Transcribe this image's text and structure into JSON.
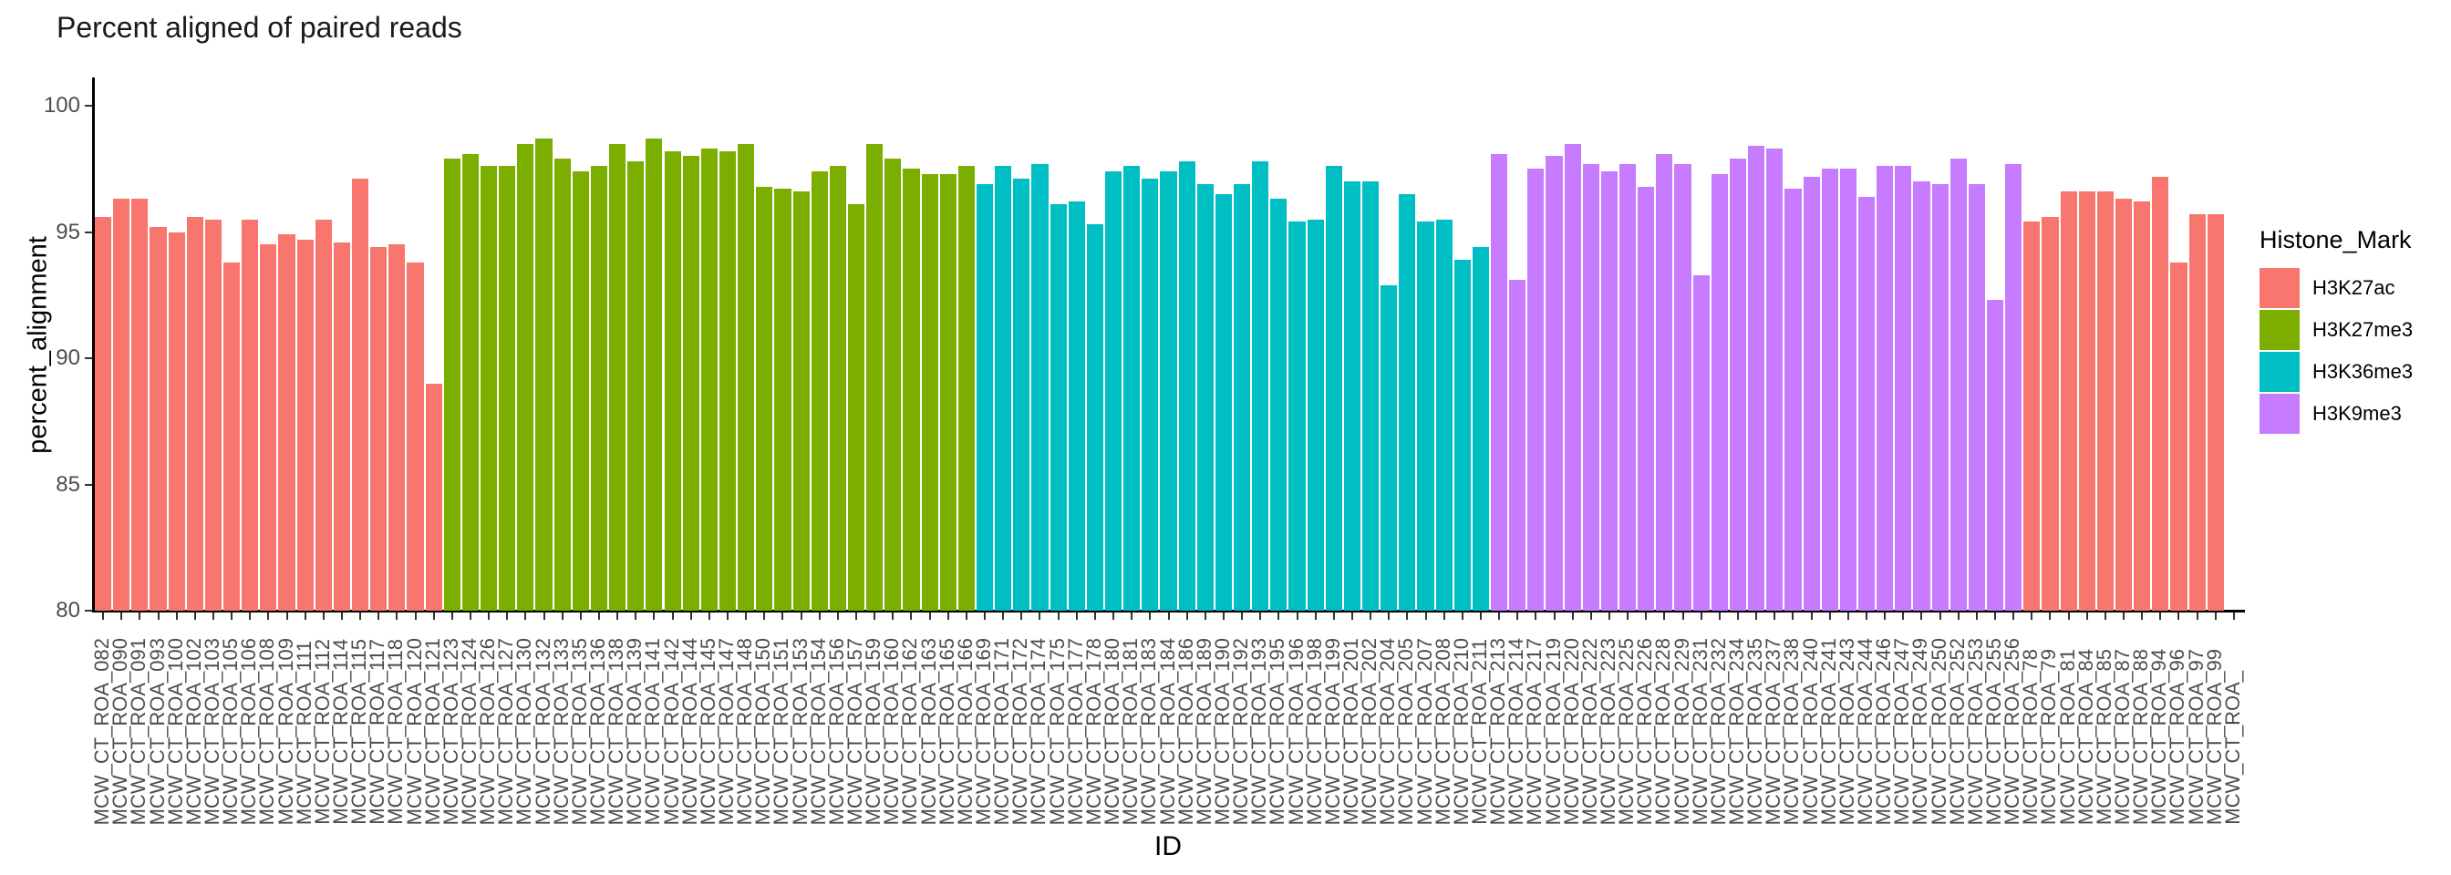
{
  "chart_data": {
    "type": "bar",
    "title": "Percent aligned of paired reads",
    "xlabel": "ID",
    "ylabel": "percent_alignment",
    "ylim": [
      80,
      100
    ],
    "yticks": [
      80,
      85,
      90,
      95,
      100
    ],
    "grid": false,
    "legend": {
      "title": "Histone_Mark",
      "position": "right",
      "entries": [
        {
          "label": "H3K27ac",
          "color": "#F8766D"
        },
        {
          "label": "H3K27me3",
          "color": "#7CAE00"
        },
        {
          "label": "H3K36me3",
          "color": "#00BFC4"
        },
        {
          "label": "H3K9me3",
          "color": "#C77CFF"
        }
      ]
    },
    "colors": {
      "H3K27ac": "#F8766D",
      "H3K27me3": "#7CAE00",
      "H3K36me3": "#00BFC4",
      "H3K9me3": "#C77CFF"
    },
    "points": [
      [
        "MCW_CT_ROA_082",
        95.6,
        "H3K27ac"
      ],
      [
        "MCW_CT_ROA_090",
        96.3,
        "H3K27ac"
      ],
      [
        "MCW_CT_ROA_091",
        96.3,
        "H3K27ac"
      ],
      [
        "MCW_CT_ROA_093",
        95.2,
        "H3K27ac"
      ],
      [
        "MCW_CT_ROA_100",
        95.0,
        "H3K27ac"
      ],
      [
        "MCW_CT_ROA_102",
        95.6,
        "H3K27ac"
      ],
      [
        "MCW_CT_ROA_103",
        95.5,
        "H3K27ac"
      ],
      [
        "MCW_CT_ROA_105",
        93.8,
        "H3K27ac"
      ],
      [
        "MCW_CT_ROA_106",
        95.5,
        "H3K27ac"
      ],
      [
        "MCW_CT_ROA_108",
        94.5,
        "H3K27ac"
      ],
      [
        "MCW_CT_ROA_109",
        94.9,
        "H3K27ac"
      ],
      [
        "MCW_CT_ROA_111",
        94.7,
        "H3K27ac"
      ],
      [
        "MCW_CT_ROA_112",
        95.5,
        "H3K27ac"
      ],
      [
        "MCW_CT_ROA_114",
        94.6,
        "H3K27ac"
      ],
      [
        "MCW_CT_ROA_115",
        97.1,
        "H3K27ac"
      ],
      [
        "MCW_CT_ROA_117",
        94.4,
        "H3K27ac"
      ],
      [
        "MCW_CT_ROA_118",
        94.5,
        "H3K27ac"
      ],
      [
        "MCW_CT_ROA_120",
        93.8,
        "H3K27ac"
      ],
      [
        "MCW_CT_ROA_121",
        89.0,
        "H3K27ac"
      ],
      [
        "MCW_CT_ROA_123",
        97.9,
        "H3K27me3"
      ],
      [
        "MCW_CT_ROA_124",
        98.1,
        "H3K27me3"
      ],
      [
        "MCW_CT_ROA_126",
        97.6,
        "H3K27me3"
      ],
      [
        "MCW_CT_ROA_127",
        97.6,
        "H3K27me3"
      ],
      [
        "MCW_CT_ROA_130",
        98.5,
        "H3K27me3"
      ],
      [
        "MCW_CT_ROA_132",
        98.7,
        "H3K27me3"
      ],
      [
        "MCW_CT_ROA_133",
        97.9,
        "H3K27me3"
      ],
      [
        "MCW_CT_ROA_135",
        97.4,
        "H3K27me3"
      ],
      [
        "MCW_CT_ROA_136",
        97.6,
        "H3K27me3"
      ],
      [
        "MCW_CT_ROA_138",
        98.5,
        "H3K27me3"
      ],
      [
        "MCW_CT_ROA_139",
        97.8,
        "H3K27me3"
      ],
      [
        "MCW_CT_ROA_141",
        98.7,
        "H3K27me3"
      ],
      [
        "MCW_CT_ROA_142",
        98.2,
        "H3K27me3"
      ],
      [
        "MCW_CT_ROA_144",
        98.0,
        "H3K27me3"
      ],
      [
        "MCW_CT_ROA_145",
        98.3,
        "H3K27me3"
      ],
      [
        "MCW_CT_ROA_147",
        98.2,
        "H3K27me3"
      ],
      [
        "MCW_CT_ROA_148",
        98.5,
        "H3K27me3"
      ],
      [
        "MCW_CT_ROA_150",
        96.8,
        "H3K27me3"
      ],
      [
        "MCW_CT_ROA_151",
        96.7,
        "H3K27me3"
      ],
      [
        "MCW_CT_ROA_153",
        96.6,
        "H3K27me3"
      ],
      [
        "MCW_CT_ROA_154",
        97.4,
        "H3K27me3"
      ],
      [
        "MCW_CT_ROA_156",
        97.6,
        "H3K27me3"
      ],
      [
        "MCW_CT_ROA_157",
        96.1,
        "H3K27me3"
      ],
      [
        "MCW_CT_ROA_159",
        98.5,
        "H3K27me3"
      ],
      [
        "MCW_CT_ROA_160",
        97.9,
        "H3K27me3"
      ],
      [
        "MCW_CT_ROA_162",
        97.5,
        "H3K27me3"
      ],
      [
        "MCW_CT_ROA_163",
        97.3,
        "H3K27me3"
      ],
      [
        "MCW_CT_ROA_165",
        97.3,
        "H3K27me3"
      ],
      [
        "MCW_CT_ROA_166",
        97.6,
        "H3K27me3"
      ],
      [
        "MCW_CT_ROA_169",
        96.9,
        "H3K36me3"
      ],
      [
        "MCW_CT_ROA_171",
        97.6,
        "H3K36me3"
      ],
      [
        "MCW_CT_ROA_172",
        97.1,
        "H3K36me3"
      ],
      [
        "MCW_CT_ROA_174",
        97.7,
        "H3K36me3"
      ],
      [
        "MCW_CT_ROA_175",
        96.1,
        "H3K36me3"
      ],
      [
        "MCW_CT_ROA_177",
        96.2,
        "H3K36me3"
      ],
      [
        "MCW_CT_ROA_178",
        95.3,
        "H3K36me3"
      ],
      [
        "MCW_CT_ROA_180",
        97.4,
        "H3K36me3"
      ],
      [
        "MCW_CT_ROA_181",
        97.6,
        "H3K36me3"
      ],
      [
        "MCW_CT_ROA_183",
        97.1,
        "H3K36me3"
      ],
      [
        "MCW_CT_ROA_184",
        97.4,
        "H3K36me3"
      ],
      [
        "MCW_CT_ROA_186",
        97.8,
        "H3K36me3"
      ],
      [
        "MCW_CT_ROA_189",
        96.9,
        "H3K36me3"
      ],
      [
        "MCW_CT_ROA_190",
        96.5,
        "H3K36me3"
      ],
      [
        "MCW_CT_ROA_192",
        96.9,
        "H3K36me3"
      ],
      [
        "MCW_CT_ROA_193",
        97.8,
        "H3K36me3"
      ],
      [
        "MCW_CT_ROA_195",
        96.3,
        "H3K36me3"
      ],
      [
        "MCW_CT_ROA_196",
        95.4,
        "H3K36me3"
      ],
      [
        "MCW_CT_ROA_198",
        95.5,
        "H3K36me3"
      ],
      [
        "MCW_CT_ROA_199",
        97.6,
        "H3K36me3"
      ],
      [
        "MCW_CT_ROA_201",
        97.0,
        "H3K36me3"
      ],
      [
        "MCW_CT_ROA_202",
        97.0,
        "H3K36me3"
      ],
      [
        "MCW_CT_ROA_204",
        92.9,
        "H3K36me3"
      ],
      [
        "MCW_CT_ROA_205",
        96.5,
        "H3K36me3"
      ],
      [
        "MCW_CT_ROA_207",
        95.4,
        "H3K36me3"
      ],
      [
        "MCW_CT_ROA_208",
        95.5,
        "H3K36me3"
      ],
      [
        "MCW_CT_ROA_210",
        93.9,
        "H3K36me3"
      ],
      [
        "MCW_CT_ROA_211",
        94.4,
        "H3K36me3"
      ],
      [
        "MCW_CT_ROA_213",
        98.1,
        "H3K9me3"
      ],
      [
        "MCW_CT_ROA_214",
        93.1,
        "H3K9me3"
      ],
      [
        "MCW_CT_ROA_217",
        97.5,
        "H3K9me3"
      ],
      [
        "MCW_CT_ROA_219",
        98.0,
        "H3K9me3"
      ],
      [
        "MCW_CT_ROA_220",
        98.5,
        "H3K9me3"
      ],
      [
        "MCW_CT_ROA_222",
        97.7,
        "H3K9me3"
      ],
      [
        "MCW_CT_ROA_223",
        97.4,
        "H3K9me3"
      ],
      [
        "MCW_CT_ROA_225",
        97.7,
        "H3K9me3"
      ],
      [
        "MCW_CT_ROA_226",
        96.8,
        "H3K9me3"
      ],
      [
        "MCW_CT_ROA_228",
        98.1,
        "H3K9me3"
      ],
      [
        "MCW_CT_ROA_229",
        97.7,
        "H3K9me3"
      ],
      [
        "MCW_CT_ROA_231",
        93.3,
        "H3K9me3"
      ],
      [
        "MCW_CT_ROA_232",
        97.3,
        "H3K9me3"
      ],
      [
        "MCW_CT_ROA_234",
        97.9,
        "H3K9me3"
      ],
      [
        "MCW_CT_ROA_235",
        98.4,
        "H3K9me3"
      ],
      [
        "MCW_CT_ROA_237",
        98.3,
        "H3K9me3"
      ],
      [
        "MCW_CT_ROA_238",
        96.7,
        "H3K9me3"
      ],
      [
        "MCW_CT_ROA_240",
        97.2,
        "H3K9me3"
      ],
      [
        "MCW_CT_ROA_241",
        97.5,
        "H3K9me3"
      ],
      [
        "MCW_CT_ROA_243",
        97.5,
        "H3K9me3"
      ],
      [
        "MCW_CT_ROA_244",
        96.4,
        "H3K9me3"
      ],
      [
        "MCW_CT_ROA_246",
        97.6,
        "H3K9me3"
      ],
      [
        "MCW_CT_ROA_247",
        97.6,
        "H3K9me3"
      ],
      [
        "MCW_CT_ROA_249",
        97.0,
        "H3K9me3"
      ],
      [
        "MCW_CT_ROA_250",
        96.9,
        "H3K9me3"
      ],
      [
        "MCW_CT_ROA_252",
        97.9,
        "H3K9me3"
      ],
      [
        "MCW_CT_ROA_253",
        96.9,
        "H3K9me3"
      ],
      [
        "MCW_CT_ROA_255",
        92.3,
        "H3K9me3"
      ],
      [
        "MCW_CT_ROA_256",
        97.7,
        "H3K9me3"
      ],
      [
        "MCW_CT_ROA_78",
        95.4,
        "H3K27ac"
      ],
      [
        "MCW_CT_ROA_79",
        95.6,
        "H3K27ac"
      ],
      [
        "MCW_CT_ROA_81",
        96.6,
        "H3K27ac"
      ],
      [
        "MCW_CT_ROA_84",
        96.6,
        "H3K27ac"
      ],
      [
        "MCW_CT_ROA_85",
        96.6,
        "H3K27ac"
      ],
      [
        "MCW_CT_ROA_87",
        96.3,
        "H3K27ac"
      ],
      [
        "MCW_CT_ROA_88",
        96.2,
        "H3K27ac"
      ],
      [
        "MCW_CT_ROA_94",
        97.2,
        "H3K27ac"
      ],
      [
        "MCW_CT_ROA_96",
        93.8,
        "H3K27ac"
      ],
      [
        "MCW_CT_ROA_97",
        95.7,
        "H3K27ac"
      ],
      [
        "MCW_CT_ROA_99",
        95.7,
        "H3K27ac"
      ],
      [
        "MCW_CT_ROA_",
        null,
        "H3K27ac"
      ]
    ]
  }
}
